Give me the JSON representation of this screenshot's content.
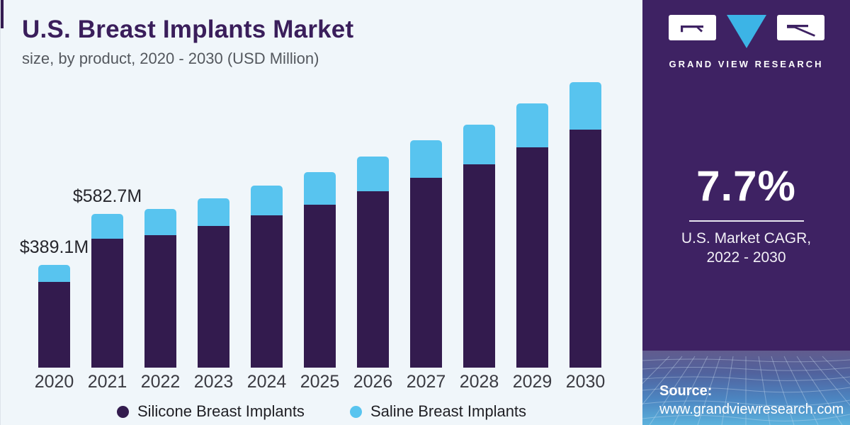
{
  "header": {
    "title": "U.S. Breast Implants Market",
    "subtitle": "size, by product, 2020 - 2030 (USD Million)"
  },
  "chart_data": {
    "type": "bar",
    "stacked": true,
    "unit": "USD Million",
    "categories": [
      "2020",
      "2021",
      "2022",
      "2023",
      "2024",
      "2025",
      "2026",
      "2027",
      "2028",
      "2029",
      "2030"
    ],
    "series": [
      {
        "name": "Silicone Breast Implants",
        "color": "#331b4e",
        "values": [
          325,
          487,
          501,
          535,
          576,
          618,
          668,
          718,
          769,
          835,
          902
        ]
      },
      {
        "name": "Saline Breast Implants",
        "color": "#58c4ef",
        "values": [
          64,
          96,
          99,
          105,
          114,
          122,
          132,
          142,
          151,
          165,
          178
        ]
      }
    ],
    "totals": [
      389,
      583,
      600,
      640,
      690,
      740,
      800,
      860,
      920,
      1000,
      1080
    ],
    "annotations": [
      {
        "category": "2020",
        "label": "$389.1M"
      },
      {
        "category": "2021",
        "label": "$582.7M"
      }
    ],
    "ylim": [
      0,
      1100
    ],
    "grid": false,
    "legend_position": "bottom"
  },
  "sidebar": {
    "brand": {
      "name": "GRAND VIEW RESEARCH"
    },
    "cagr": {
      "value": "7.7%",
      "caption_line1": "U.S. Market CAGR,",
      "caption_line2": "2022 - 2030"
    },
    "source": {
      "label": "Source:",
      "url": "www.grandviewresearch.com"
    },
    "colors": {
      "sidebar_bg": "#3e2263",
      "triangle_blue": "#3cb4e6",
      "panel_bg": "#f0f6fa"
    }
  }
}
